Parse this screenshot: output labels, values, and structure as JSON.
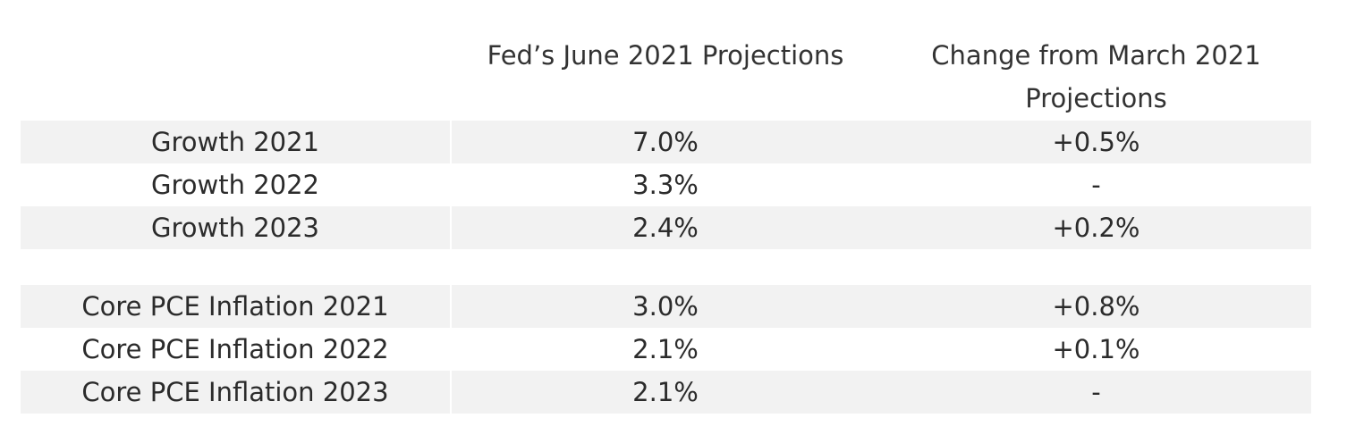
{
  "header": {
    "col2": "Fed’s June 2021 Projections",
    "col3_line1": "Change from March 2021",
    "col3_line2": "Projections"
  },
  "rows": [
    {
      "label": "Growth 2021",
      "projection": "7.0%",
      "change": "+0.5%"
    },
    {
      "label": "Growth 2022",
      "projection": "3.3%",
      "change": "-"
    },
    {
      "label": "Growth 2023",
      "projection": "2.4%",
      "change": "+0.2%"
    },
    {
      "label": "Core PCE Inflation 2021",
      "projection": "3.0%",
      "change": "+0.8%"
    },
    {
      "label": "Core PCE Inflation 2022",
      "projection": "2.1%",
      "change": "+0.1%"
    },
    {
      "label": "Core PCE Inflation 2023",
      "projection": "2.1%",
      "change": "-"
    }
  ],
  "colors": {
    "shaded_row": "#f2f2f2",
    "text": "#2b2b2b"
  }
}
